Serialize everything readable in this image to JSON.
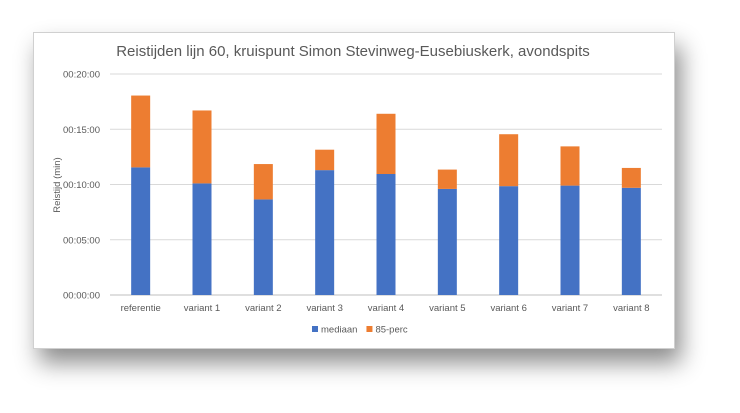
{
  "chart_data": {
    "type": "bar",
    "stacked": true,
    "title": "Reistijden lijn 60, kruispunt Simon Stevinweg-Eusebiuskerk,  avondspits",
    "xlabel": "",
    "ylabel": "Reistijd (min)",
    "ylim": [
      0,
      20
    ],
    "y_unit": "minutes",
    "yticks": [
      0,
      5,
      10,
      15,
      20
    ],
    "ytick_labels": [
      "00:00:00",
      "00:05:00",
      "00:10:00",
      "00:15:00",
      "00:20:00"
    ],
    "grid": true,
    "legend_position": "bottom",
    "categories": [
      "referentie",
      "variant 1",
      "variant 2",
      "variant 3",
      "variant 4",
      "variant 5",
      "variant 6",
      "variant 7",
      "variant 8"
    ],
    "series": [
      {
        "name": "mediaan",
        "color": "#4472C4",
        "values": [
          11.55,
          10.1,
          8.65,
          11.3,
          10.95,
          9.6,
          9.85,
          9.9,
          9.7
        ]
      },
      {
        "name": "85-perc",
        "color": "#ED7D31",
        "values": [
          6.5,
          6.6,
          3.2,
          1.85,
          5.45,
          1.75,
          4.7,
          3.55,
          1.8
        ]
      }
    ]
  }
}
